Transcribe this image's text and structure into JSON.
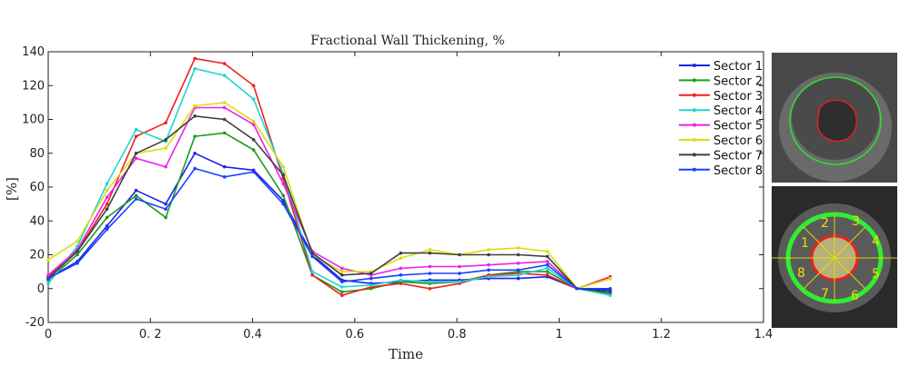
{
  "chart_data": {
    "type": "line",
    "title": "Fractional Wall Thickening, %",
    "xlabel": "Time",
    "ylabel": "[%]",
    "xlim": [
      0,
      1.4
    ],
    "ylim": [
      -20,
      140
    ],
    "xticks": [
      0,
      0.2,
      0.4,
      0.6,
      0.8,
      1.0,
      1.2,
      1.4
    ],
    "xtick_labels": [
      "0",
      "0. 2",
      "0.4",
      "0.6",
      "0.8",
      "1",
      "1.2",
      "1.4"
    ],
    "yticks": [
      -20,
      0,
      20,
      40,
      60,
      80,
      100,
      120,
      140
    ],
    "ytick_labels": [
      "-20",
      "0",
      "20",
      "40",
      "60",
      "80",
      "100",
      "120",
      "140"
    ],
    "grid": false,
    "legend_position": "top-right",
    "x": [
      0,
      0.057,
      0.115,
      0.172,
      0.23,
      0.287,
      0.345,
      0.402,
      0.46,
      0.517,
      0.575,
      0.632,
      0.69,
      0.747,
      0.805,
      0.862,
      0.92,
      0.977,
      1.035,
      1.1
    ],
    "series": [
      {
        "name": "Sector 1",
        "color": "#2020ee",
        "values": [
          6,
          16,
          37,
          58,
          50,
          80,
          72,
          70,
          52,
          20,
          5,
          3,
          4,
          5,
          5,
          6,
          6,
          7,
          0,
          -1
        ]
      },
      {
        "name": "Sector 2",
        "color": "#1e9a1e",
        "values": [
          5,
          20,
          42,
          55,
          42,
          90,
          92,
          82,
          55,
          8,
          -2,
          0,
          4,
          3,
          4,
          8,
          10,
          10,
          0,
          -3
        ]
      },
      {
        "name": "Sector 3",
        "color": "#ee2020",
        "values": [
          7,
          22,
          50,
          90,
          98,
          136,
          133,
          120,
          65,
          8,
          -4,
          1,
          3,
          0,
          3,
          8,
          9,
          8,
          0,
          7
        ]
      },
      {
        "name": "Sector 4",
        "color": "#20d4d4",
        "values": [
          3,
          25,
          62,
          94,
          87,
          130,
          126,
          112,
          68,
          10,
          1,
          2,
          5,
          4,
          4,
          7,
          8,
          12,
          0,
          -4
        ]
      },
      {
        "name": "Sector 5",
        "color": "#ee20ee",
        "values": [
          8,
          23,
          54,
          77,
          72,
          107,
          107,
          97,
          62,
          22,
          12,
          8,
          12,
          13,
          13,
          14,
          15,
          16,
          0,
          6
        ]
      },
      {
        "name": "Sector 6",
        "color": "#dddd10",
        "values": [
          17,
          28,
          58,
          80,
          83,
          108,
          110,
          99,
          72,
          20,
          10,
          10,
          18,
          23,
          20,
          23,
          24,
          22,
          0,
          6
        ]
      },
      {
        "name": "Sector 7",
        "color": "#404040",
        "values": [
          6,
          22,
          47,
          80,
          88,
          102,
          100,
          88,
          67,
          21,
          8,
          9,
          21,
          21,
          20,
          20,
          20,
          19,
          0,
          -2
        ]
      },
      {
        "name": "Sector 8",
        "color": "#1a40ff",
        "values": [
          6,
          15,
          35,
          53,
          47,
          71,
          66,
          69,
          50,
          19,
          4,
          6,
          8,
          9,
          9,
          11,
          11,
          14,
          0,
          0
        ]
      }
    ]
  },
  "mri_labels": [
    "1",
    "2",
    "3",
    "4",
    "5",
    "6",
    "7",
    "8"
  ]
}
